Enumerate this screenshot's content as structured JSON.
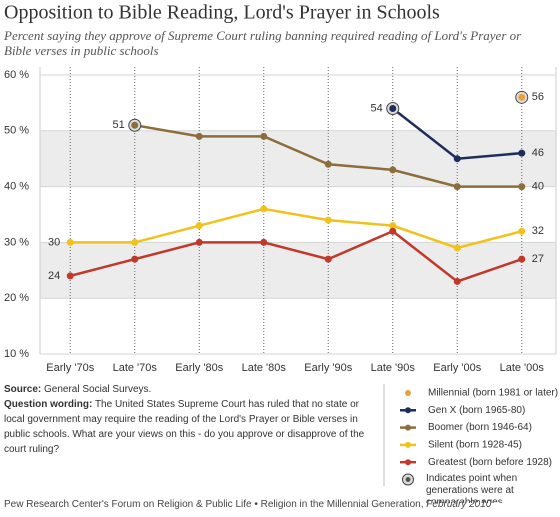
{
  "chart_data": {
    "type": "line",
    "title": "Opposition to Bible Reading, Lord's Prayer in Schools",
    "subtitle": "Percent saying they approve of Supreme Court ruling banning required reading of Lord's Prayer or Bible verses in public schools",
    "categories": [
      "Early '70s",
      "Late '70s",
      "Early '80s",
      "Late '80s",
      "Early '90s",
      "Late '90s",
      "Early '00s",
      "Late '00s"
    ],
    "series": [
      {
        "name": "Millennial (born 1981 or later)",
        "color": "#e9a23b",
        "values": [
          null,
          null,
          null,
          null,
          null,
          null,
          null,
          56
        ],
        "comparable_point": 7
      },
      {
        "name": "Gen X (born 1965-80)",
        "color": "#1f2d5c",
        "values": [
          null,
          null,
          null,
          null,
          null,
          54,
          45,
          46
        ],
        "comparable_point": 5
      },
      {
        "name": "Boomer (born 1946-64)",
        "color": "#8c6d3b",
        "values": [
          null,
          51,
          49,
          49,
          44,
          43,
          40,
          40
        ],
        "comparable_point": 1
      },
      {
        "name": "Silent (born 1928-45)",
        "color": "#f1c21b",
        "values": [
          30,
          30,
          33,
          36,
          34,
          33,
          29,
          32
        ]
      },
      {
        "name": "Greatest (born before 1928)",
        "color": "#c0392b",
        "values": [
          24,
          27,
          30,
          30,
          27,
          32,
          23,
          27
        ]
      }
    ],
    "marker_note": "Indicates point when generations were at comparable ages",
    "ylim": [
      10,
      60
    ],
    "yticks": [
      {
        "value": 10,
        "label": "10 %"
      },
      {
        "value": 20,
        "label": "20 %"
      },
      {
        "value": 30,
        "label": "30 %"
      },
      {
        "value": 40,
        "label": "40 %"
      },
      {
        "value": 50,
        "label": "50 %"
      },
      {
        "value": 60,
        "label": "60 %"
      }
    ],
    "grid": true,
    "legend": "bottom-right",
    "source_label": "Source:",
    "source_text": "General Social Surveys.",
    "question_label": "Question wording:",
    "question_text": "The United States Supreme Court has ruled that no state or local government may require the reading of the Lord's Prayer or Bible verses in public schools. What are your views on this - do you approve or disapprove of the court ruling?",
    "footer_text": "Pew Research Center's Forum on Religion & Public Life • Religion in the Millennial Generation,",
    "footer_date": "February 2010"
  }
}
